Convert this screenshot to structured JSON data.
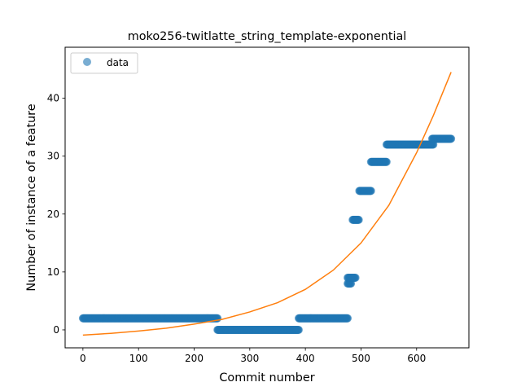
{
  "chart_data": {
    "type": "scatter",
    "title": "moko256-twitlatte_string_template-exponential",
    "xlabel": "Commit number",
    "ylabel": "Number of instance of a feature",
    "xlim": [
      -32,
      694
    ],
    "ylim": [
      -3.1,
      48.8
    ],
    "xticks": [
      0,
      100,
      200,
      300,
      400,
      500,
      600
    ],
    "yticks": [
      0,
      10,
      20,
      30,
      40
    ],
    "legend": {
      "position": "top-left",
      "entries": [
        "data"
      ]
    },
    "colors": {
      "data": "#1f77b4",
      "fit": "#ff7f0e"
    },
    "data_segments": [
      {
        "x_start": 0,
        "x_end": 242,
        "y": 2
      },
      {
        "x_start": 242,
        "x_end": 388,
        "y": 0
      },
      {
        "x_start": 388,
        "x_end": 476,
        "y": 2
      },
      {
        "x_start": 476,
        "x_end": 482,
        "y": 8
      },
      {
        "x_start": 476,
        "x_end": 490,
        "y": 9
      },
      {
        "x_start": 485,
        "x_end": 496,
        "y": 19
      },
      {
        "x_start": 497,
        "x_end": 518,
        "y": 24
      },
      {
        "x_start": 518,
        "x_end": 546,
        "y": 29
      },
      {
        "x_start": 546,
        "x_end": 630,
        "y": 32
      },
      {
        "x_start": 628,
        "x_end": 662,
        "y": 33
      }
    ],
    "fit_curve": {
      "x": [
        0,
        50,
        100,
        150,
        200,
        250,
        300,
        350,
        400,
        450,
        500,
        550,
        600,
        630,
        662
      ],
      "y": [
        -0.9,
        -0.6,
        -0.2,
        0.3,
        1.0,
        1.8,
        3.1,
        4.7,
        7.0,
        10.3,
        15.0,
        21.5,
        30.6,
        37.0,
        44.5
      ]
    }
  }
}
